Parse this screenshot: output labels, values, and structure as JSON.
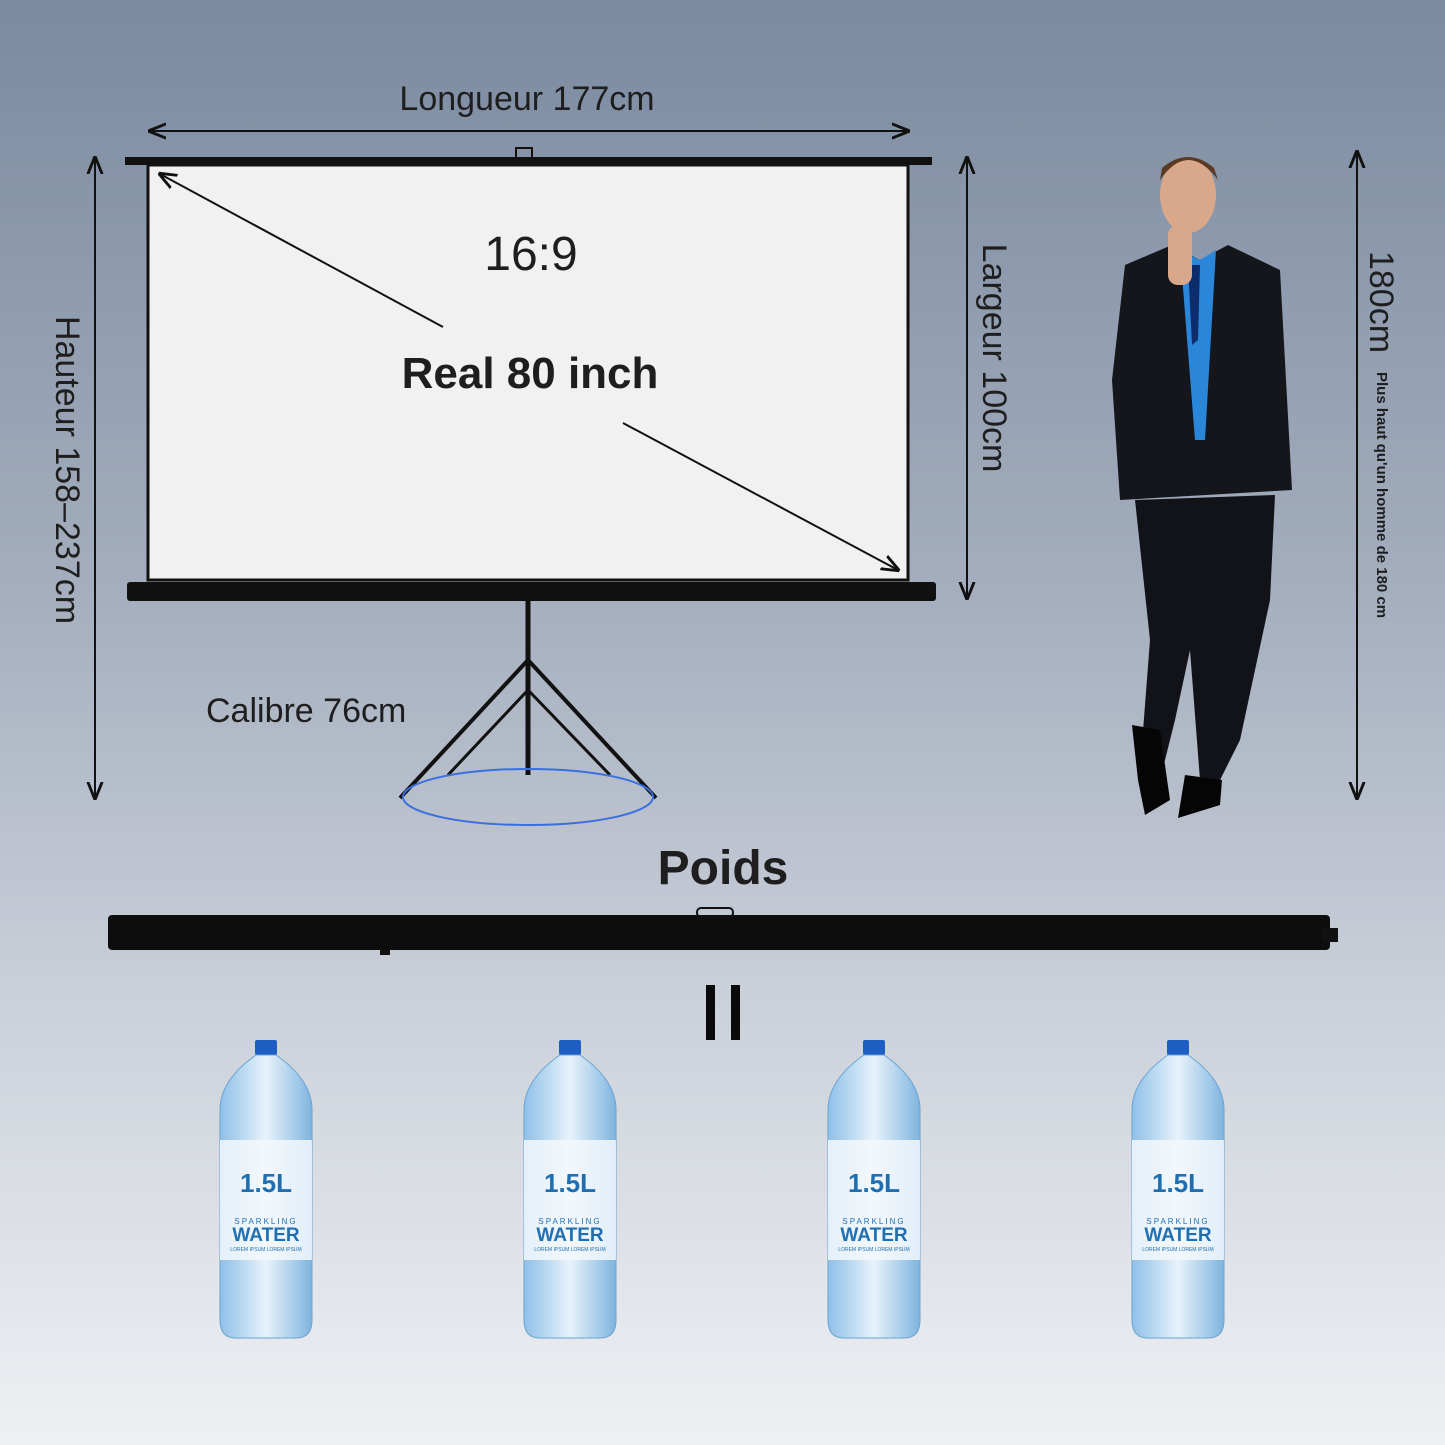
{
  "dimensions": {
    "length_label": "Longueur 177cm",
    "height_label": "Hauteur 158–237cm",
    "width_label": "Largeur 100cm",
    "base_label": "Calibre 76cm",
    "aspect_ratio": "16:9",
    "diagonal_label": "Real 80 inch"
  },
  "person": {
    "height_label": "180cm",
    "comparison_text": "Plus haut qu'un homme de 180 cm"
  },
  "weight": {
    "title": "Poids",
    "equals_sign": "=",
    "bottles": [
      {
        "volume": "1.5L",
        "brand_top": "SPARKLING",
        "brand": "WATER",
        "fine_print": "LOREM IPSUM LOREM IPSUM"
      },
      {
        "volume": "1.5L",
        "brand_top": "SPARKLING",
        "brand": "WATER",
        "fine_print": "LOREM IPSUM LOREM IPSUM"
      },
      {
        "volume": "1.5L",
        "brand_top": "SPARKLING",
        "brand": "WATER",
        "fine_print": "LOREM IPSUM LOREM IPSUM"
      },
      {
        "volume": "1.5L",
        "brand_top": "SPARKLING",
        "brand": "WATER",
        "fine_print": "LOREM IPSUM LOREM IPSUM"
      }
    ]
  },
  "colors": {
    "bottle_label": "#1f6fb3",
    "cap": "#1c5fc0",
    "base_circle": "#3a6fe0"
  }
}
